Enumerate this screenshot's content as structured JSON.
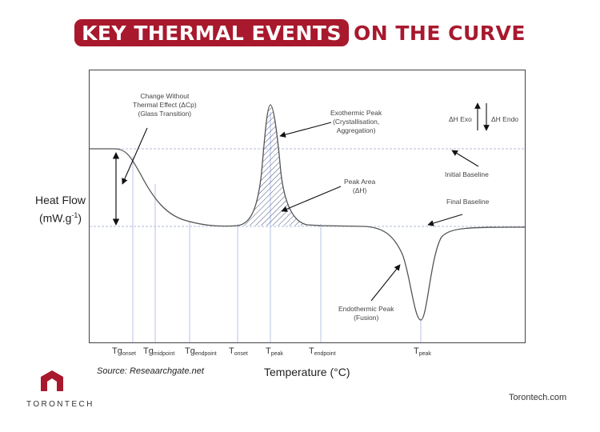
{
  "header": {
    "title_highlight": "KEY THERMAL EVENTS",
    "title_rest": "ON THE CURVE"
  },
  "axes": {
    "ylabel_line1": "Heat Flow",
    "ylabel_line2_main": "(mW.g",
    "ylabel_line2_sup": "-1",
    "ylabel_line2_end": ")",
    "xlabel": "Temperature (°C)"
  },
  "ticks": [
    {
      "main": "Tg",
      "sub": "onset"
    },
    {
      "main": "Tg",
      "sub": "midpoint"
    },
    {
      "main": "Tg",
      "sub": "endpoint"
    },
    {
      "main": "T",
      "sub": "onset"
    },
    {
      "main": "T",
      "sub": "peak"
    },
    {
      "main": "T",
      "sub": "endpoint"
    },
    {
      "main": "T",
      "sub": "peak"
    }
  ],
  "annotations": {
    "glass": [
      "Change Without",
      "Thermal Effect (ΔCp)",
      "(Glass Transition)"
    ],
    "exo": [
      "Exothermic Peak",
      "(Crystallisation,",
      "Aggregation)"
    ],
    "peak_area": [
      "Peak Area",
      "(ΔH)"
    ],
    "endo": [
      "Endothermic Peak",
      "(Fusion)"
    ],
    "initial_baseline": "Initial Baseline",
    "final_baseline": "Final Baseline",
    "dh_exo": "ΔH Exo",
    "dh_endo": "ΔH Endo"
  },
  "footer": {
    "source": "Source: Reseaarchgate.net",
    "brand": "TORONTECH",
    "site": "Torontech.com"
  },
  "colors": {
    "accent": "#a8192e",
    "curve": "#555555",
    "guide": "#9aa6d6",
    "hatch": "#2e3f73"
  }
}
